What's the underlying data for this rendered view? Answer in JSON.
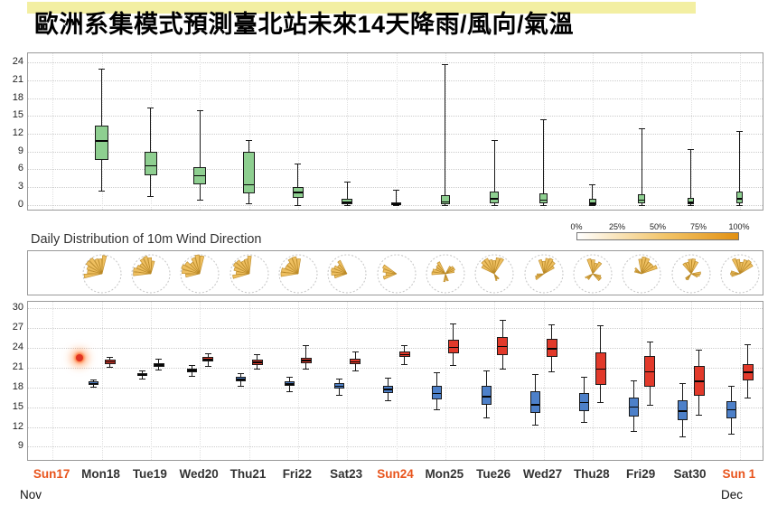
{
  "title": "歐洲系集模式預測臺北站未來14天降雨/風向/氣溫",
  "wind_panel": {
    "label": "Daily Distribution of 10m Wind Direction",
    "legend_labels": [
      "0%",
      "25%",
      "50%",
      "75%",
      "100%"
    ]
  },
  "x_axis": {
    "labels": [
      {
        "text": "Sun17",
        "sunday": true
      },
      {
        "text": "Mon18",
        "sunday": false
      },
      {
        "text": "Tue19",
        "sunday": false
      },
      {
        "text": "Wed20",
        "sunday": false
      },
      {
        "text": "Thu21",
        "sunday": false
      },
      {
        "text": "Fri22",
        "sunday": false
      },
      {
        "text": "Sat23",
        "sunday": false
      },
      {
        "text": "Sun24",
        "sunday": true
      },
      {
        "text": "Mon25",
        "sunday": false
      },
      {
        "text": "Tue26",
        "sunday": false
      },
      {
        "text": "Wed27",
        "sunday": false
      },
      {
        "text": "Thu28",
        "sunday": false
      },
      {
        "text": "Fri29",
        "sunday": false
      },
      {
        "text": "Sat30",
        "sunday": false
      },
      {
        "text": "Sun 1",
        "sunday": true
      }
    ],
    "sunday_color": "#e8541c",
    "weekday_color": "#333333",
    "month_left": "Nov",
    "month_right": "Dec"
  },
  "chart_data": [
    {
      "id": "precipitation_boxplot",
      "type": "boxplot",
      "categories": [
        "Sun17",
        "Mon18",
        "Tue19",
        "Wed20",
        "Thu21",
        "Fri22",
        "Sat23",
        "Sun24",
        "Mon25",
        "Tue26",
        "Wed27",
        "Thu28",
        "Fri29",
        "Sat30",
        "Sun 1"
      ],
      "ylim": [
        0,
        24
      ],
      "yticks": [
        0,
        3,
        6,
        9,
        12,
        15,
        18,
        21,
        24
      ],
      "grid": true,
      "box_fill": "#8ecf90",
      "boxes": [
        null,
        {
          "lo": 2.4,
          "q1": 7.6,
          "med": 10.8,
          "q3": 13.4,
          "hi": 23.0
        },
        {
          "lo": 1.5,
          "q1": 5.0,
          "med": 6.6,
          "q3": 9.0,
          "hi": 16.5
        },
        {
          "lo": 0.9,
          "q1": 3.4,
          "med": 4.9,
          "q3": 6.4,
          "hi": 16.0
        },
        {
          "lo": 0.3,
          "q1": 2.0,
          "med": 3.4,
          "q3": 8.9,
          "hi": 11.0
        },
        {
          "lo": 0.0,
          "q1": 1.2,
          "med": 2.1,
          "q3": 3.0,
          "hi": 7.0
        },
        {
          "lo": 0.0,
          "q1": 0.1,
          "med": 0.4,
          "q3": 1.0,
          "hi": 4.0
        },
        {
          "lo": 0.0,
          "q1": 0.0,
          "med": 0.1,
          "q3": 0.4,
          "hi": 2.5
        },
        {
          "lo": 0.0,
          "q1": 0.1,
          "med": 0.5,
          "q3": 1.6,
          "hi": 23.8
        },
        {
          "lo": 0.0,
          "q1": 0.3,
          "med": 1.0,
          "q3": 2.3,
          "hi": 11.0
        },
        {
          "lo": 0.0,
          "q1": 0.2,
          "med": 0.8,
          "q3": 2.0,
          "hi": 14.5
        },
        {
          "lo": 0.0,
          "q1": 0.0,
          "med": 0.3,
          "q3": 1.0,
          "hi": 3.5
        },
        {
          "lo": 0.0,
          "q1": 0.2,
          "med": 0.8,
          "q3": 1.8,
          "hi": 13.0
        },
        {
          "lo": 0.0,
          "q1": 0.1,
          "med": 0.4,
          "q3": 1.2,
          "hi": 9.5
        },
        {
          "lo": 0.0,
          "q1": 0.3,
          "med": 1.0,
          "q3": 2.2,
          "hi": 12.5
        }
      ]
    },
    {
      "id": "wind_direction_strip",
      "type": "windrose_strip",
      "categories": [
        "Sun17",
        "Mon18",
        "Tue19",
        "Wed20",
        "Thu21",
        "Fri22",
        "Sat23",
        "Sun24",
        "Mon25",
        "Tue26",
        "Wed27",
        "Thu28",
        "Fri29",
        "Sat30",
        "Sun 1"
      ],
      "rose_fill": "#ecb84f",
      "rose_stroke": "#bb8a28",
      "roses": [
        null,
        {
          "petals": [
            {
              "d": 315,
              "s": 120,
              "r": 1.0
            }
          ]
        },
        {
          "petals": [
            {
              "d": 320,
              "s": 115,
              "r": 0.95
            }
          ]
        },
        {
          "petals": [
            {
              "d": 315,
              "s": 120,
              "r": 1.0
            }
          ]
        },
        {
          "petals": [
            {
              "d": 310,
              "s": 115,
              "r": 0.95
            }
          ]
        },
        {
          "petals": [
            {
              "d": 315,
              "s": 110,
              "r": 0.92
            }
          ]
        },
        {
          "petals": [
            {
              "d": 292,
              "s": 85,
              "r": 0.85
            }
          ]
        },
        {
          "petals": [
            {
              "d": 276,
              "s": 62,
              "r": 0.8
            }
          ]
        },
        {
          "petals": [
            {
              "d": 300,
              "s": 70,
              "r": 0.72
            },
            {
              "d": 55,
              "s": 55,
              "r": 0.55
            },
            {
              "d": 175,
              "s": 40,
              "r": 0.45
            }
          ]
        },
        {
          "petals": [
            {
              "d": 345,
              "s": 100,
              "r": 0.9
            },
            {
              "d": 150,
              "s": 35,
              "r": 0.4
            }
          ]
        },
        {
          "petals": [
            {
              "d": 20,
              "s": 85,
              "r": 0.88
            },
            {
              "d": 250,
              "s": 40,
              "r": 0.5
            }
          ]
        },
        {
          "petals": [
            {
              "d": 10,
              "s": 65,
              "r": 0.8
            },
            {
              "d": 120,
              "s": 40,
              "r": 0.5
            },
            {
              "d": 230,
              "s": 35,
              "r": 0.45
            }
          ]
        },
        {
          "petals": [
            {
              "d": 30,
              "s": 85,
              "r": 0.9
            },
            {
              "d": 300,
              "s": 35,
              "r": 0.45
            }
          ]
        },
        {
          "petals": [
            {
              "d": 355,
              "s": 75,
              "r": 0.8
            },
            {
              "d": 100,
              "s": 45,
              "r": 0.5
            },
            {
              "d": 220,
              "s": 30,
              "r": 0.4
            }
          ]
        },
        {
          "petals": [
            {
              "d": 15,
              "s": 90,
              "r": 0.85
            },
            {
              "d": 270,
              "s": 40,
              "r": 0.5
            }
          ]
        }
      ]
    },
    {
      "id": "temperature_boxplot",
      "type": "boxplot_pairs",
      "categories": [
        "Sun17",
        "Mon18",
        "Tue19",
        "Wed20",
        "Thu21",
        "Fri22",
        "Sat23",
        "Sun24",
        "Mon25",
        "Tue26",
        "Wed27",
        "Thu28",
        "Fri29",
        "Sat30",
        "Sun 1"
      ],
      "ylim": [
        9,
        30
      ],
      "yticks": [
        9,
        12,
        15,
        18,
        21,
        24,
        27,
        30
      ],
      "grid": true,
      "series": [
        {
          "name": "min_temperature",
          "fill": "#4d80c9",
          "boxes": [
            null,
            {
              "lo": 18.1,
              "q1": 18.4,
              "med": 18.6,
              "q3": 18.9,
              "hi": 19.2
            },
            {
              "lo": 19.3,
              "q1": 19.7,
              "med": 19.9,
              "q3": 20.2,
              "hi": 20.6
            },
            {
              "lo": 19.8,
              "q1": 20.3,
              "med": 20.6,
              "q3": 20.9,
              "hi": 21.4
            },
            {
              "lo": 18.2,
              "q1": 18.9,
              "med": 19.2,
              "q3": 19.6,
              "hi": 20.2
            },
            {
              "lo": 17.4,
              "q1": 18.2,
              "med": 18.5,
              "q3": 18.9,
              "hi": 19.6
            },
            {
              "lo": 16.9,
              "q1": 17.8,
              "med": 18.2,
              "q3": 18.6,
              "hi": 19.4
            },
            {
              "lo": 16.1,
              "q1": 17.2,
              "med": 17.7,
              "q3": 18.3,
              "hi": 19.5
            },
            {
              "lo": 14.7,
              "q1": 16.2,
              "med": 17.1,
              "q3": 18.2,
              "hi": 20.3
            },
            {
              "lo": 13.4,
              "q1": 15.3,
              "med": 16.6,
              "q3": 18.3,
              "hi": 20.6
            },
            {
              "lo": 12.3,
              "q1": 14.1,
              "med": 15.4,
              "q3": 17.4,
              "hi": 20.0
            },
            {
              "lo": 12.7,
              "q1": 14.4,
              "med": 15.7,
              "q3": 17.1,
              "hi": 19.6
            },
            {
              "lo": 11.4,
              "q1": 13.6,
              "med": 15.0,
              "q3": 16.5,
              "hi": 19.1
            },
            {
              "lo": 10.6,
              "q1": 13.0,
              "med": 14.4,
              "q3": 16.0,
              "hi": 18.6
            },
            {
              "lo": 11.0,
              "q1": 13.3,
              "med": 14.6,
              "q3": 15.9,
              "hi": 18.2
            }
          ]
        },
        {
          "name": "max_temperature",
          "fill": "#e2392a",
          "boxes": [
            null,
            {
              "lo": 21.1,
              "q1": 21.6,
              "med": 21.9,
              "q3": 22.2,
              "hi": 22.7
            },
            {
              "lo": 20.7,
              "q1": 21.1,
              "med": 21.4,
              "q3": 21.7,
              "hi": 22.3
            },
            {
              "lo": 21.3,
              "q1": 21.9,
              "med": 22.2,
              "q3": 22.6,
              "hi": 23.2
            },
            {
              "lo": 20.8,
              "q1": 21.4,
              "med": 21.8,
              "q3": 22.2,
              "hi": 23.1
            },
            {
              "lo": 20.9,
              "q1": 21.7,
              "med": 22.1,
              "q3": 22.5,
              "hi": 24.4
            },
            {
              "lo": 20.6,
              "q1": 21.5,
              "med": 21.9,
              "q3": 22.3,
              "hi": 23.4
            },
            {
              "lo": 21.6,
              "q1": 22.6,
              "med": 23.0,
              "q3": 23.5,
              "hi": 24.4
            },
            {
              "lo": 21.4,
              "q1": 23.2,
              "med": 24.1,
              "q3": 25.2,
              "hi": 27.7
            },
            {
              "lo": 20.9,
              "q1": 22.9,
              "med": 24.2,
              "q3": 25.6,
              "hi": 28.3
            },
            {
              "lo": 20.4,
              "q1": 22.6,
              "med": 23.9,
              "q3": 25.4,
              "hi": 27.6
            },
            {
              "lo": 15.8,
              "q1": 18.4,
              "med": 20.8,
              "q3": 23.3,
              "hi": 27.5
            },
            {
              "lo": 15.3,
              "q1": 18.1,
              "med": 20.4,
              "q3": 22.8,
              "hi": 24.9
            },
            {
              "lo": 13.8,
              "q1": 16.8,
              "med": 18.9,
              "q3": 21.3,
              "hi": 23.8
            },
            {
              "lo": 16.4,
              "q1": 19.0,
              "med": 20.3,
              "q3": 21.6,
              "hi": 24.6
            }
          ]
        }
      ],
      "observed": {
        "category": "Sun17",
        "value": 22.5,
        "color": "#e03423"
      }
    }
  ]
}
